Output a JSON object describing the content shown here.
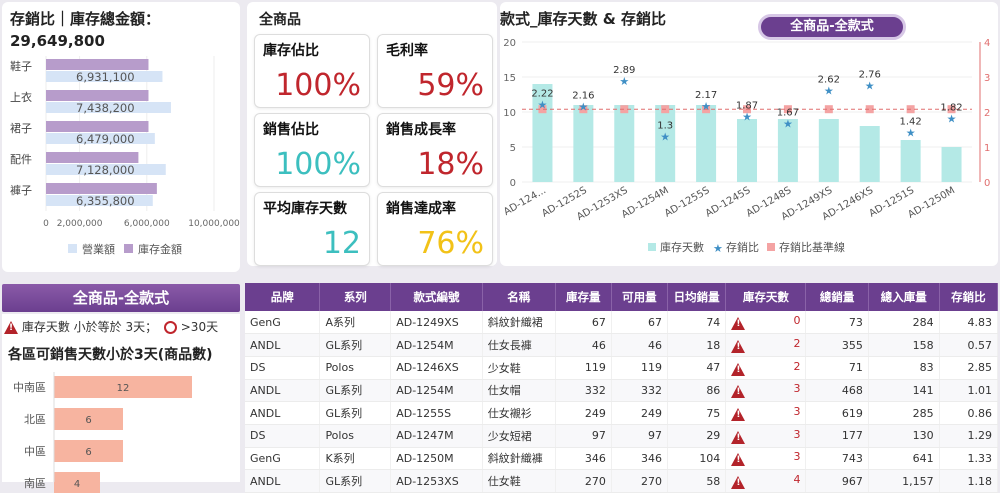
{
  "stock_panel": {
    "title": "存銷比｜庫存總金額：29,649,800",
    "chart_data": {
      "type": "bar",
      "categories": [
        "鞋子",
        "上衣",
        "裙子",
        "配件",
        "褲子"
      ],
      "series": [
        {
          "name": "營業額",
          "values": [
            6931100,
            7438200,
            6479000,
            7128000,
            6355800
          ]
        },
        {
          "name": "庫存金額",
          "values": [
            6100000,
            6100000,
            6100000,
            5500000,
            6600000
          ]
        }
      ],
      "data_labels": [
        "6,931,100",
        "7,438,200",
        "6,479,000",
        "7,128,000",
        "6,355,800"
      ],
      "xticks": [
        "0",
        "2,000,000",
        "6,000,000",
        "10,000,000"
      ],
      "xlim": [
        0,
        10000000
      ],
      "legend": [
        "營業額",
        "庫存金額"
      ],
      "legend_position": "bottom",
      "colors": {
        "sales": "#d6e4f6",
        "stock": "#b79ccb"
      }
    }
  },
  "kpi": {
    "header": "全商品",
    "items": [
      {
        "label": "庫存佔比",
        "value": "100%",
        "color": "#c0262d"
      },
      {
        "label": "毛利率",
        "value": "59%",
        "color": "#c0262d"
      },
      {
        "label": "銷售佔比",
        "value": "100%",
        "color": "#3cbfbf"
      },
      {
        "label": "銷售成長率",
        "value": "18%",
        "color": "#c0262d"
      },
      {
        "label": "平均庫存天數",
        "value": "12",
        "color": "#3cbfbf"
      },
      {
        "label": "銷售達成率",
        "value": "76%",
        "color": "#f2c218"
      }
    ]
  },
  "style_chart": {
    "title": "款式_庫存天數 & 存銷比",
    "filter_label": "全商品-全款式",
    "chart_data": {
      "type": "bar",
      "categories": [
        "AD-124...",
        "AD-1252S",
        "AD-1253XS",
        "AD-1254M",
        "AD-1255S",
        "AD-1245S",
        "AD-1248S",
        "AD-1249XS",
        "AD-1246XS",
        "AD-1251S",
        "AD-1250M"
      ],
      "series": [
        {
          "name": "庫存天數",
          "values": [
            14,
            11,
            11,
            11,
            11,
            9,
            9,
            9,
            8,
            6,
            5
          ]
        },
        {
          "name": "存銷比",
          "values": [
            2.22,
            2.16,
            2.89,
            1.3,
            2.17,
            1.87,
            1.67,
            2.62,
            2.76,
            1.42,
            1.82
          ]
        }
      ],
      "point_labels": [
        "2.22",
        "2.16",
        "2.89",
        "1.3",
        "2.17",
        "1.87",
        "1.67",
        "2.62",
        "2.76",
        "1.42",
        "1.82"
      ],
      "baseline": {
        "name": "存銷比基準線",
        "value": 2.08
      },
      "ylim_left": [
        0,
        20
      ],
      "ylim_right": [
        0,
        4
      ],
      "yticks_left": [
        "0",
        "5",
        "10",
        "15",
        "20"
      ],
      "yticks_right": [
        "0",
        "1",
        "2",
        "3",
        "4"
      ],
      "legend": [
        "庫存天數",
        "存銷比",
        "存銷比基準線"
      ],
      "legend_position": "bottom",
      "colors": {
        "bar": "#b4e9e6",
        "star": "#3f8fc5",
        "baseline": "#f4a3a3"
      }
    }
  },
  "region": {
    "banner": "全商品-全款式",
    "alert": "庫存天數 小於等於 3天；",
    "alert_right": ">30天",
    "title": "各區可銷售天數小於3天(商品數)",
    "chart_data": {
      "type": "bar",
      "categories": [
        "中南區",
        "北區",
        "中區",
        "南區"
      ],
      "values": [
        12,
        6,
        6,
        4
      ],
      "data_labels": [
        "12",
        "6",
        "6",
        "4"
      ],
      "colors": {
        "bar": "#f7b4a0"
      }
    }
  },
  "table": {
    "headers": [
      "品牌",
      "系列",
      "款式編號",
      "名稱",
      "庫存量",
      "可用量",
      "日均銷量",
      "庫存天數",
      "總銷量",
      "總入庫量",
      "存銷比"
    ],
    "rows": [
      [
        "GenG",
        "A系列",
        "AD-1249XS",
        "斜紋針織裙",
        "67",
        "67",
        "74",
        "0",
        "73",
        "284",
        "4.83"
      ],
      [
        "ANDL",
        "GL系列",
        "AD-1254M",
        "仕女長褲",
        "46",
        "46",
        "18",
        "2",
        "355",
        "158",
        "0.57"
      ],
      [
        "DS",
        "Polos",
        "AD-1246XS",
        "少女鞋",
        "119",
        "119",
        "47",
        "2",
        "71",
        "83",
        "2.85"
      ],
      [
        "ANDL",
        "GL系列",
        "AD-1254M",
        "仕女帽",
        "332",
        "332",
        "86",
        "3",
        "468",
        "141",
        "1.01"
      ],
      [
        "ANDL",
        "GL系列",
        "AD-1255S",
        "仕女襯衫",
        "249",
        "249",
        "75",
        "3",
        "619",
        "285",
        "0.86"
      ],
      [
        "DS",
        "Polos",
        "AD-1247M",
        "少女短裙",
        "97",
        "97",
        "29",
        "3",
        "177",
        "130",
        "1.29"
      ],
      [
        "GenG",
        "K系列",
        "AD-1250M",
        "斜紋針織褲",
        "346",
        "346",
        "104",
        "3",
        "743",
        "641",
        "1.33"
      ],
      [
        "ANDL",
        "GL系列",
        "AD-1253XS",
        "仕女鞋",
        "270",
        "270",
        "58",
        "4",
        "967",
        "1,157",
        "1.18"
      ]
    ]
  }
}
